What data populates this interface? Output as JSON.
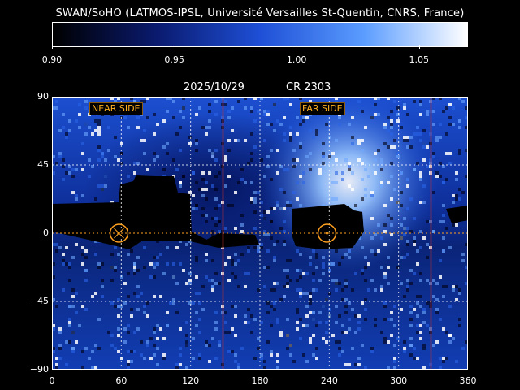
{
  "title": "SWAN/SoHO (LATMOS-IPSL, Université Versailles St-Quentin, CNRS, France)",
  "colorbar": {
    "ticks": [
      "0.90",
      "0.95",
      "1.00",
      "1.05"
    ],
    "tick_values": [
      0.9,
      0.95,
      1.0,
      1.05
    ],
    "range": [
      0.9,
      1.07
    ],
    "colors": [
      "#000000",
      "#0a1a6e",
      "#1e4fd6",
      "#5a9cff",
      "#ffffff"
    ]
  },
  "header": {
    "date": "2025/10/29",
    "rotation": "CR 2303"
  },
  "map": {
    "near_side_label": "NEAR SIDE",
    "far_side_label": "FAR SIDE",
    "x_ticks": [
      "0",
      "60",
      "120",
      "180",
      "240",
      "300",
      "360"
    ],
    "x_tick_values": [
      0,
      60,
      120,
      180,
      240,
      300,
      360
    ],
    "y_ticks": [
      "90",
      "45",
      "0",
      "−45",
      "−90"
    ],
    "y_tick_values": [
      90,
      45,
      0,
      -45,
      -90
    ],
    "red_lines_longitude": [
      148,
      328
    ],
    "circle_centers_longitude": [
      58,
      238
    ],
    "accent_orange": "#ffa020",
    "accent_red": "#c03030"
  }
}
